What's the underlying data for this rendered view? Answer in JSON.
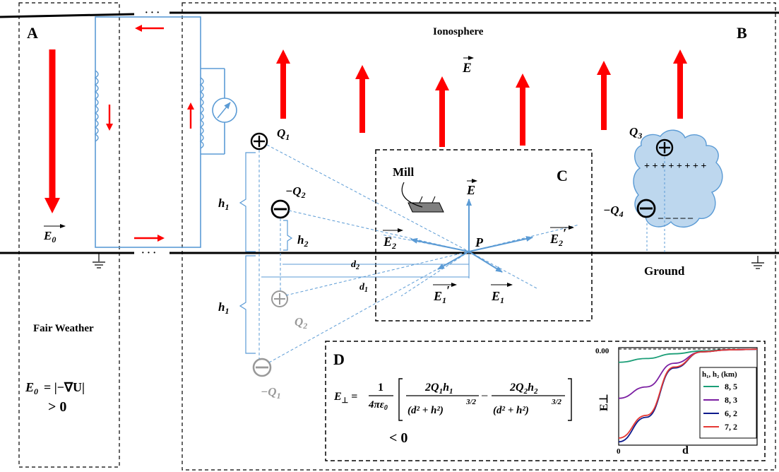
{
  "panels": {
    "a": "A",
    "b": "B",
    "c": "C",
    "d": "D"
  },
  "labels": {
    "ionosphere": "Ionosphere",
    "ground": "Ground",
    "mill": "Mill",
    "fair_weather": "Fair Weather",
    "point_p": "P"
  },
  "charges": {
    "q1": "Q",
    "q1_sub": "1",
    "q2": "−Q",
    "q2_sub": "2",
    "q3": "Q",
    "q3_sub": "3",
    "q4": "−Q",
    "q4_sub": "4",
    "q2_image": "Q",
    "q2_image_sub": "2",
    "q1_image": "−Q",
    "q1_image_sub": "1",
    "cloud_plus": "+ + + + + + + +",
    "cloud_minus": "– – – – –"
  },
  "dimensions": {
    "h1": "h",
    "h1_sub": "1",
    "h2": "h",
    "h2_sub": "2",
    "d1": "d",
    "d1_sub": "1",
    "d2": "d",
    "d2_sub": "2"
  },
  "fields": {
    "e": "E",
    "e0": "E",
    "e0_sub": "0",
    "e1": "E",
    "e1_sub": "1",
    "e1p": "E",
    "e1p_sub": "1",
    "e2": "E",
    "e2_sub": "2",
    "e2p": "E",
    "e2p_sub": "2",
    "prime": "′"
  },
  "equations": {
    "a_lhs": "E",
    "a_lhs_sub": "0",
    "a_rhs": "= |−∇U|",
    "a_ineq": "> 0",
    "d_lhs": "E",
    "d_lhs_sub": "⊥",
    "d_equals": "=",
    "d_frac_num": "1",
    "d_frac_den": "4πε",
    "d_frac_den_sub": "0",
    "d_term1_num": "2Q",
    "d_term1_num_rest": "h",
    "d_term1_den": "(d² + h²)",
    "d_term2_num": "2Q",
    "d_term2_num_rest": "h",
    "d_term2_den": "(d² + h²)",
    "d_exponent": "3/2",
    "d_minus": "−",
    "d_ineq": "< 0"
  },
  "chart_data": {
    "type": "line",
    "title": "",
    "xlabel": "d",
    "ylabel": "E⊥",
    "x_ticks": [
      "0"
    ],
    "y_ticks": [
      "0.00"
    ],
    "legend_title": "h₁, h₂ (km)",
    "legend_position": "right",
    "series": [
      {
        "name": "8, 5",
        "color": "#1b9e77",
        "x": [
          0,
          0.2,
          0.4,
          0.6,
          0.8,
          1.0
        ],
        "y": [
          -0.14,
          -0.1,
          -0.05,
          -0.02,
          -0.006,
          -0.002
        ]
      },
      {
        "name": "8, 3",
        "color": "#7b1fa2",
        "x": [
          0,
          0.2,
          0.4,
          0.6,
          0.8,
          1.0
        ],
        "y": [
          -0.52,
          -0.4,
          -0.15,
          -0.03,
          -0.008,
          -0.002
        ]
      },
      {
        "name": "6, 2",
        "color": "#0d1a8c",
        "x": [
          0,
          0.2,
          0.4,
          0.6,
          0.8,
          1.0
        ],
        "y": [
          -0.98,
          -0.72,
          -0.2,
          -0.03,
          -0.008,
          -0.002
        ]
      },
      {
        "name": "7, 2",
        "color": "#e53935",
        "x": [
          0,
          0.2,
          0.4,
          0.6,
          0.8,
          1.0
        ],
        "y": [
          -0.94,
          -0.7,
          -0.19,
          -0.03,
          -0.008,
          -0.002
        ]
      }
    ]
  }
}
